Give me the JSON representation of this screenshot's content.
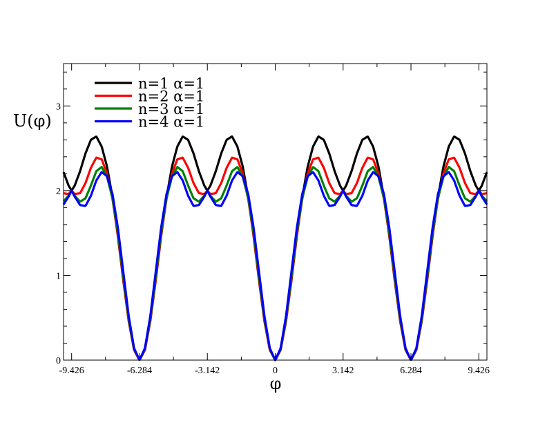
{
  "chart_data": {
    "type": "line",
    "title": "",
    "xlabel": "φ",
    "ylabel": "U(φ)",
    "xlim": [
      -9.8,
      9.8
    ],
    "ylim": [
      0,
      3.5
    ],
    "x_ticks": [
      -9.426,
      -6.284,
      -3.142,
      0,
      3.142,
      6.284,
      9.426
    ],
    "x_tick_labels": [
      "-9.426",
      "-6.284",
      "-3.142",
      "0",
      "3.142",
      "6.284",
      "9.426"
    ],
    "y_ticks": [
      0,
      1,
      2,
      3
    ],
    "y_tick_labels": [
      "0",
      "1",
      "2",
      "3"
    ],
    "grid": false,
    "legend_position": "top-left",
    "series": [
      {
        "name": "n=1 α=1",
        "color": "#000000",
        "x": [
          0,
          0.25,
          0.5,
          0.75,
          1.0,
          1.25,
          1.5,
          1.75,
          2.0,
          2.25,
          2.5,
          2.75,
          3.0,
          3.142
        ],
        "y": [
          0,
          0.12,
          0.46,
          0.94,
          1.46,
          1.92,
          2.28,
          2.52,
          2.64,
          2.6,
          2.44,
          2.23,
          2.06,
          2.0
        ]
      },
      {
        "name": "n=2 α=1",
        "color": "#ff0000",
        "x": [
          0,
          0.25,
          0.5,
          0.75,
          1.0,
          1.25,
          1.5,
          1.75,
          2.0,
          2.25,
          2.5,
          2.75,
          3.0,
          3.142
        ],
        "y": [
          0,
          0.12,
          0.47,
          0.96,
          1.48,
          1.9,
          2.2,
          2.37,
          2.39,
          2.27,
          2.09,
          1.97,
          1.96,
          2.0
        ]
      },
      {
        "name": "n=3 α=1",
        "color": "#008000",
        "x": [
          0,
          0.25,
          0.5,
          0.75,
          1.0,
          1.25,
          1.5,
          1.75,
          2.0,
          2.25,
          2.5,
          2.75,
          3.0,
          3.142
        ],
        "y": [
          0,
          0.13,
          0.49,
          0.99,
          1.51,
          1.91,
          2.16,
          2.28,
          2.23,
          2.06,
          1.91,
          1.87,
          1.94,
          2.0
        ]
      },
      {
        "name": "n=4 α=1",
        "color": "#0000ff",
        "x": [
          0,
          0.25,
          0.5,
          0.75,
          1.0,
          1.25,
          1.5,
          1.75,
          2.0,
          2.25,
          2.5,
          2.75,
          3.0,
          3.142
        ],
        "y": [
          0,
          0.14,
          0.52,
          1.04,
          1.56,
          1.96,
          2.17,
          2.22,
          2.12,
          1.94,
          1.82,
          1.83,
          1.93,
          2.0
        ]
      }
    ]
  }
}
